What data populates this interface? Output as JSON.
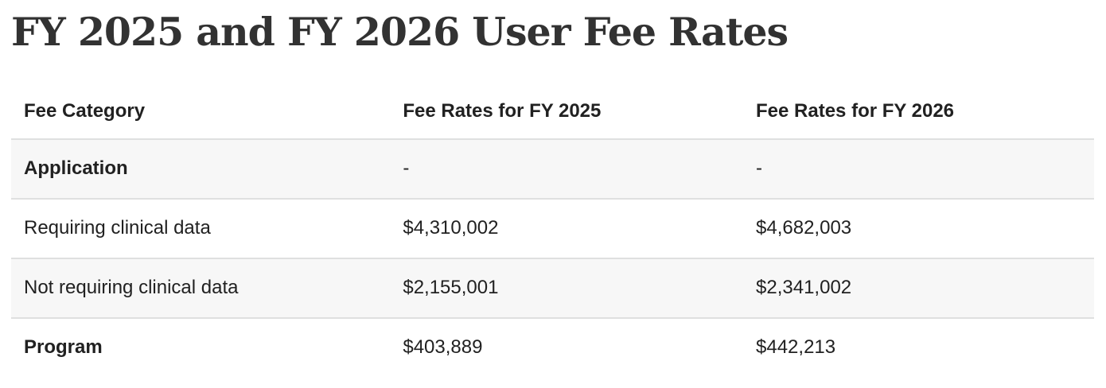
{
  "page": {
    "title": "FY 2025 and FY 2026 User Fee Rates"
  },
  "table": {
    "columns": [
      "Fee Category",
      "Fee Rates for FY 2025",
      "Fee Rates for FY 2026"
    ],
    "rows": [
      {
        "category": "Application",
        "fy2025": "-",
        "fy2026": "-"
      },
      {
        "category": "Requiring clinical data",
        "fy2025": "$4,310,002",
        "fy2026": "$4,682,003"
      },
      {
        "category": "Not requiring clinical data",
        "fy2025": "$2,155,001",
        "fy2026": "$2,341,002"
      },
      {
        "category": "Program",
        "fy2025": "$403,889",
        "fy2026": "$442,213"
      }
    ]
  },
  "colors": {
    "page_bg": "#ffffff",
    "title_text": "#323232",
    "body_text": "#212121",
    "row_stripe_bg": "#f7f7f7",
    "row_border": "#dfe0e0"
  }
}
